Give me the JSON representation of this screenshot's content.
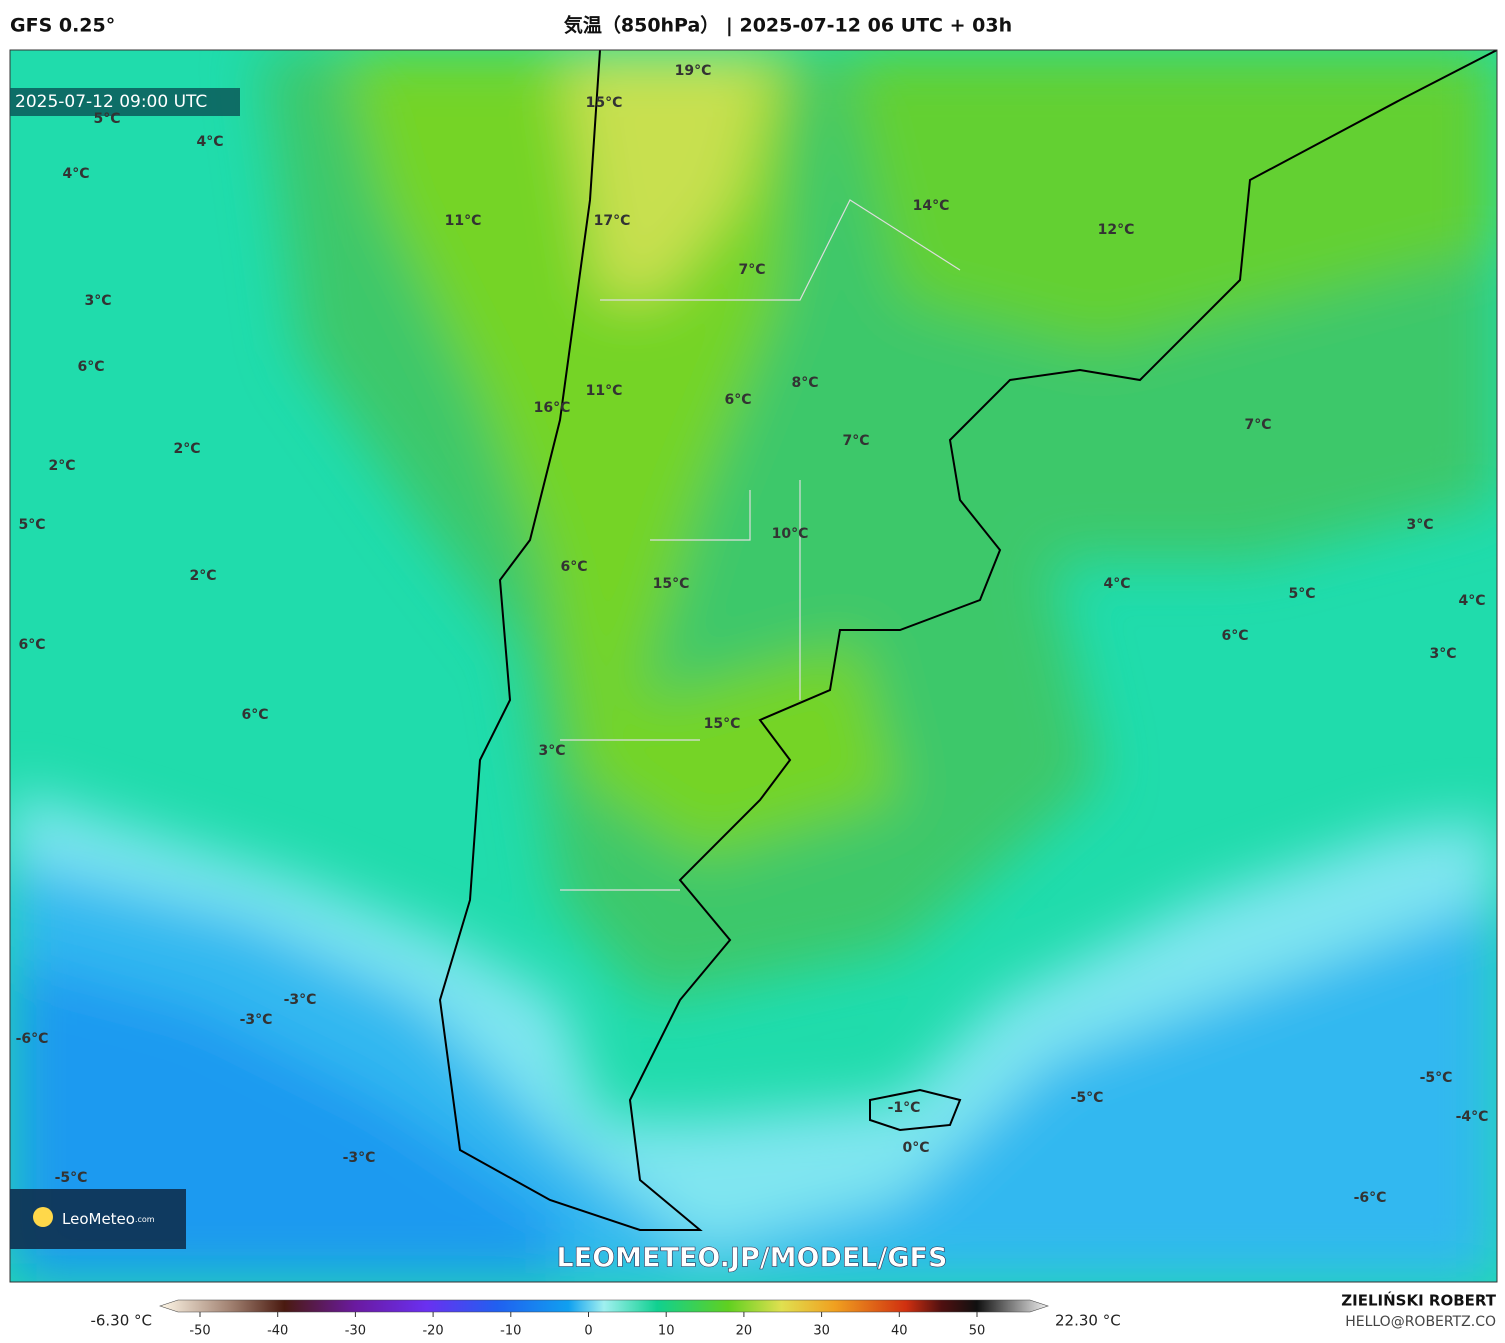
{
  "header": {
    "model": "GFS 0.25°",
    "title": "気温（850hPa） | 2025-07-12 06 UTC + 03h"
  },
  "map": {
    "valid_time": "2025-07-12 09:00 UTC",
    "watermark": "LEOMETEO.JP/MODEL/GFS",
    "logo": "LeoMeteo",
    "logo_suffix": ".com",
    "labels": [
      "5°C",
      "4°C",
      "4°C",
      "11°C",
      "3°C",
      "6°C",
      "2°C",
      "2°C",
      "5°C",
      "2°C",
      "6°C",
      "6°C",
      "15°C",
      "19°C",
      "17°C",
      "7°C",
      "14°C",
      "12°C",
      "11°C",
      "16°C",
      "6°C",
      "8°C",
      "7°C",
      "7°C",
      "10°C",
      "6°C",
      "15°C",
      "4°C",
      "3°C",
      "5°C",
      "4°C",
      "6°C",
      "3°C",
      "15°C",
      "3°C",
      "-3°C",
      "-3°C",
      "-6°C",
      "-1°C",
      "0°C",
      "-5°C",
      "-5°C",
      "-4°C",
      "-3°C",
      "-5°C",
      "-6°C"
    ]
  },
  "colorbar": {
    "min_label": "-6.30 °C",
    "max_label": "22.30 °C",
    "ticks": [
      -50,
      -40,
      -30,
      -20,
      -10,
      0,
      10,
      20,
      30,
      40,
      50
    ]
  },
  "footer": {
    "author": "ZIELIŃSKI ROBERT",
    "contact": "HELLO@ROBERTZ.CO"
  }
}
